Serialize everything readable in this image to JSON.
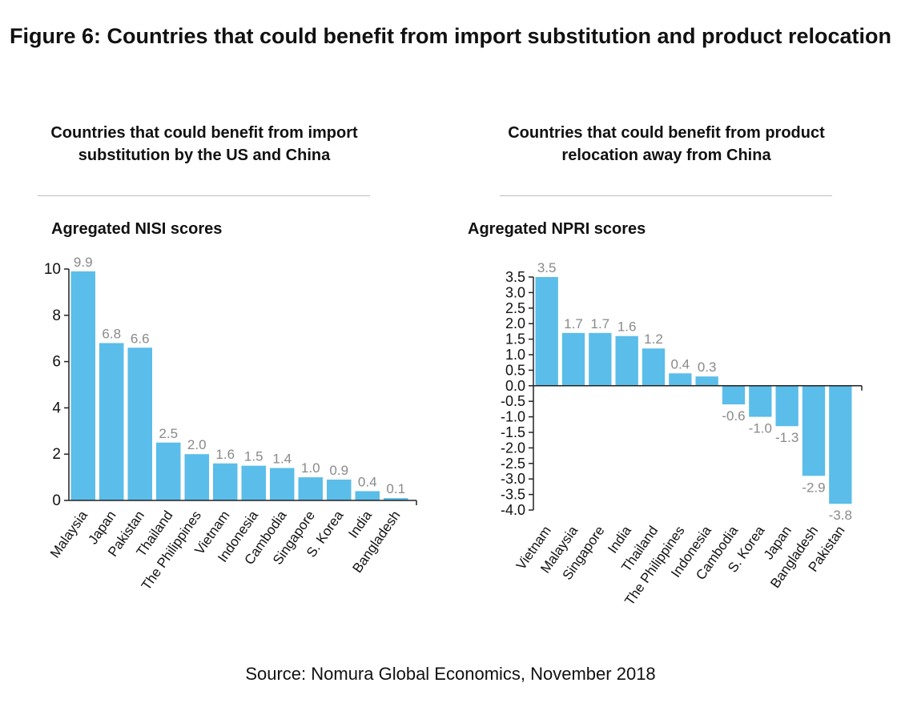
{
  "title": "Figure 6: Countries that could benefit from import substitution and product relocation",
  "source": "Source: Nomura Global Economics, November 2018",
  "colors": {
    "bar": "#5bbde9",
    "value_label": "#8a8a8a",
    "axis": "#222222"
  },
  "chart_data": [
    {
      "type": "bar",
      "title": "Countries that could benefit from import substitution by the US and China",
      "ylabel": "Agregated NISI scores",
      "xlabel": "",
      "categories": [
        "Malaysia",
        "Japan",
        "Pakistan",
        "Thailand",
        "The Philippines",
        "Vietnam",
        "Indonesia",
        "Cambodia",
        "Singapore",
        "S. Korea",
        "India",
        "Bangladesh"
      ],
      "values": [
        9.9,
        6.8,
        6.6,
        2.5,
        2.0,
        1.6,
        1.5,
        1.4,
        1.0,
        0.9,
        0.4,
        0.1
      ],
      "value_labels": [
        "9.9",
        "6.8",
        "6.6",
        "2.5",
        "2.0",
        "1.6",
        "1.5",
        "1.4",
        "1.0",
        "0.9",
        "0.4",
        "0.1"
      ],
      "ylim": [
        0,
        10
      ],
      "yticks": [
        0,
        2,
        4,
        6,
        8,
        10
      ],
      "ytick_labels": [
        "0",
        "2",
        "4",
        "6",
        "8",
        "10"
      ],
      "grid": false,
      "legend": "none"
    },
    {
      "type": "bar",
      "title": "Countries that could benefit from product relocation away from China",
      "ylabel": "Agregated NPRI scores",
      "xlabel": "",
      "categories": [
        "Vietnam",
        "Malaysia",
        "Singapore",
        "India",
        "Thailand",
        "The Philippines",
        "Indonesia",
        "Cambodia",
        "S. Korea",
        "Japan",
        "Bangladesh",
        "Pakistan"
      ],
      "values": [
        3.5,
        1.7,
        1.7,
        1.6,
        1.2,
        0.4,
        0.3,
        -0.6,
        -1.0,
        -1.3,
        -2.9,
        -3.8
      ],
      "value_labels": [
        "3.5",
        "1.7",
        "1.7",
        "1.6",
        "1.2",
        "0.4",
        "0.3",
        "-0.6",
        "-1.0",
        "-1.3",
        "-2.9",
        "-3.8"
      ],
      "ylim": [
        -4.0,
        3.5
      ],
      "yticks": [
        3.5,
        3.0,
        2.5,
        2.0,
        1.5,
        1.0,
        0.5,
        0.0,
        -0.5,
        -1.0,
        -1.5,
        -2.0,
        -2.5,
        -3.0,
        -3.5,
        -4.0
      ],
      "ytick_labels": [
        "3.5",
        "3.0",
        "2.5",
        "2.0",
        "1.5",
        "1.0",
        "0.5",
        "0.0",
        "-0.5",
        "-1.0",
        "-1.5",
        "-2.0",
        "-2.5",
        "-3.0",
        "-3.5",
        "-4.0"
      ],
      "grid": false,
      "legend": "none"
    }
  ]
}
